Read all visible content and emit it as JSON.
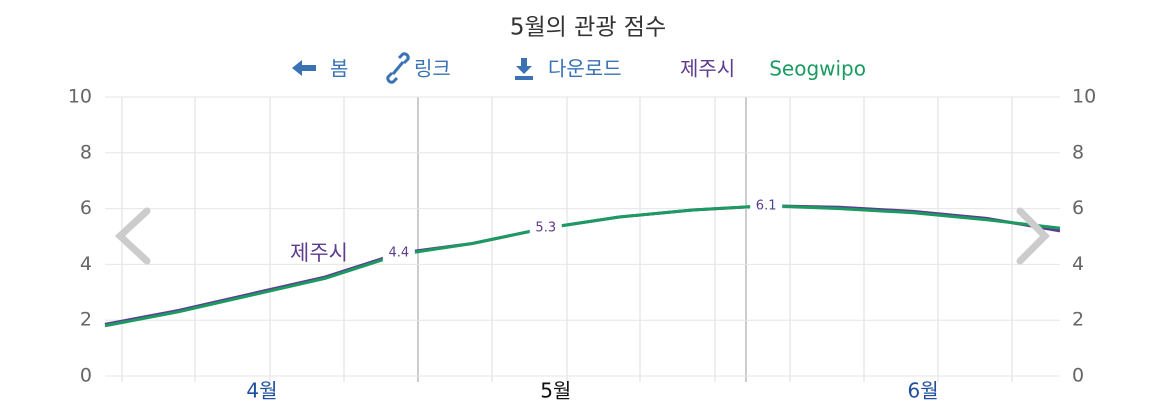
{
  "toolbar": [
    "봄",
    "링크",
    "다운로드"
  ],
  "chart_data": {
    "type": "line",
    "title": "5월의 관광 점수",
    "categories": [
      null,
      null,
      "4월",
      null,
      null,
      null,
      "5월",
      null,
      null,
      null,
      null,
      "6월",
      null,
      null
    ],
    "selected_category": 6,
    "series": [
      {
        "name": "제주시",
        "color": "#5e3c8f",
        "values": [
          1.85,
          2.35,
          2.95,
          3.55,
          4.4,
          4.75,
          5.3,
          5.7,
          5.95,
          6.1,
          6.05,
          5.9,
          5.65,
          5.2
        ],
        "value_labels": [
          null,
          null,
          null,
          null,
          "4.4",
          null,
          "5.3",
          null,
          null,
          "6.1",
          null,
          null,
          null,
          null
        ]
      },
      {
        "name": "Seogwipo",
        "color": "#1b9b61",
        "values": [
          1.8,
          2.3,
          2.9,
          3.5,
          4.35,
          4.75,
          5.3,
          5.7,
          5.95,
          6.1,
          6.0,
          5.85,
          5.6,
          5.3
        ]
      }
    ],
    "ylim": [
      0,
      10
    ],
    "yticks": [
      0,
      2,
      4,
      6,
      8,
      10
    ],
    "grid": true
  }
}
